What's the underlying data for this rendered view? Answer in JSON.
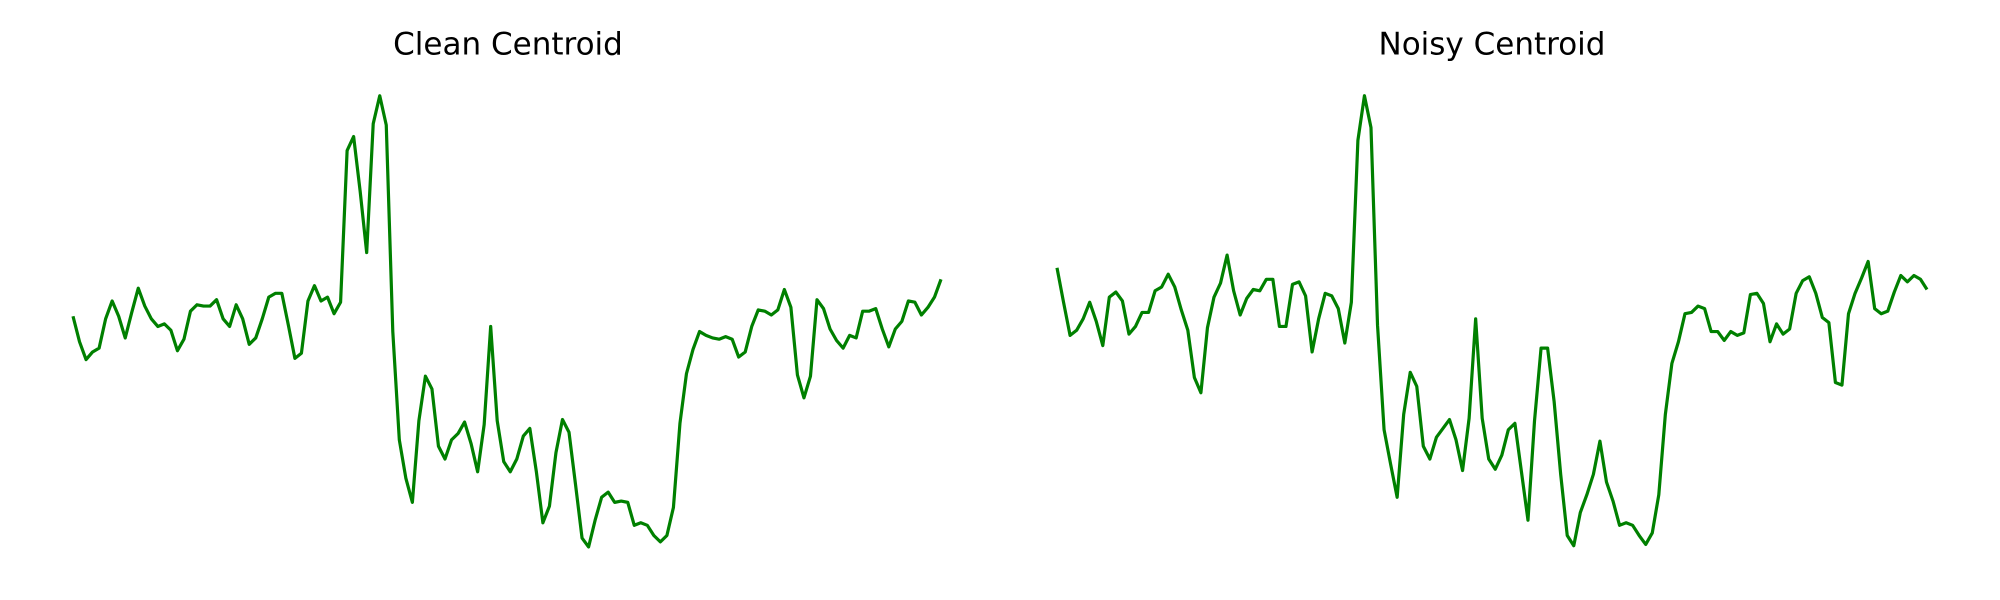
{
  "chart_data": [
    {
      "type": "line",
      "title": "Clean Centroid",
      "color": "#008000",
      "ylim": [
        -190,
        185
      ],
      "values": [
        2,
        -18,
        -32,
        -26,
        -23,
        0,
        14,
        2,
        -15,
        5,
        24,
        10,
        0,
        -6,
        -4,
        -9,
        -25,
        -16,
        6,
        11,
        10,
        10,
        15,
        0,
        -6,
        11,
        0,
        -20,
        -15,
        0,
        17,
        20,
        20,
        -5,
        -31,
        -27,
        14,
        26,
        14,
        17,
        4,
        13,
        132,
        143,
        100,
        52,
        153,
        175,
        152,
        -10,
        -95,
        -125,
        -144,
        -80,
        -45,
        -55,
        -100,
        -110,
        -95,
        -90,
        -81,
        -98,
        -120,
        -83,
        -6,
        -80,
        -112,
        -120,
        -110,
        -92,
        -86,
        -120,
        -160,
        -147,
        -105,
        -79,
        -89,
        -130,
        -172,
        -179,
        -158,
        -140,
        -136,
        -144,
        -143,
        -144,
        -162,
        -160,
        -162,
        -170,
        -175,
        -170,
        -148,
        -82,
        -43,
        -24,
        -10,
        -13,
        -15,
        -16,
        -14,
        -16,
        -30,
        -26,
        -6,
        7,
        6,
        3,
        7,
        23,
        9,
        -44,
        -62,
        -45,
        15,
        8,
        -8,
        -17,
        -23,
        -13,
        -15,
        6,
        6,
        8,
        -8,
        -22,
        -8,
        -2,
        14,
        13,
        3,
        9,
        17,
        31
      ]
    },
    {
      "type": "line",
      "title": "Noisy Centroid",
      "color": "#008000",
      "ylim": [
        -190,
        185
      ],
      "values": [
        40,
        13,
        -13,
        -9,
        0,
        13,
        -2,
        -21,
        17,
        21,
        14,
        -12,
        -6,
        5,
        5,
        22,
        25,
        35,
        25,
        7,
        -9,
        -46,
        -58,
        -7,
        17,
        28,
        50,
        22,
        3,
        16,
        23,
        22,
        31,
        31,
        -6,
        -6,
        27,
        29,
        18,
        -26,
        0,
        20,
        18,
        8,
        -19,
        13,
        140,
        175,
        150,
        -5,
        -87,
        -114,
        -140,
        -75,
        -42,
        -53,
        -100,
        -110,
        -93,
        -86,
        -79,
        -95,
        -119,
        -78,
        0,
        -78,
        -110,
        -118,
        -107,
        -87,
        -82,
        -120,
        -158,
        -80,
        -23,
        -23,
        -65,
        -122,
        -170,
        -178,
        -152,
        -138,
        -122,
        -96,
        -128,
        -143,
        -162,
        -160,
        -162,
        -170,
        -177,
        -168,
        -138,
        -75,
        -35,
        -18,
        4,
        5,
        10,
        8,
        -10,
        -10,
        -17,
        -10,
        -13,
        -11,
        19,
        20,
        12,
        -18,
        -4,
        -12,
        -8,
        20,
        30,
        33,
        20,
        1,
        -3,
        -50,
        -52,
        4,
        20,
        32,
        45,
        8,
        4,
        6,
        21,
        34,
        29,
        34,
        31,
        23
      ]
    }
  ]
}
